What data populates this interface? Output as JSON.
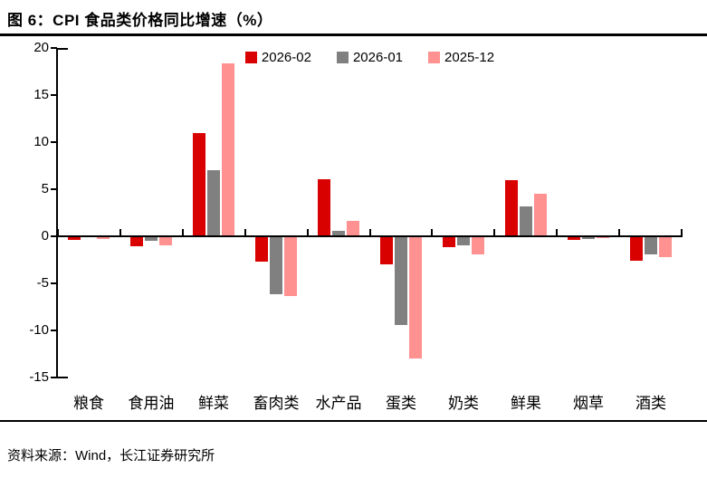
{
  "title": "图 6：CPI 食品类价格同比增速（%）",
  "source_note": "资料来源：Wind，长江证券研究所",
  "colors": {
    "series_red": "#d90000",
    "series_gray": "#808080",
    "series_pink": "#ff9191",
    "axis": "#000000",
    "background": "#ffffff"
  },
  "legend": {
    "items": [
      {
        "label": "2026-02",
        "swatch": "legend-swatch-red"
      },
      {
        "label": "2026-01",
        "swatch": "legend-swatch-gray"
      },
      {
        "label": "2025-12",
        "swatch": "legend-swatch-pink"
      }
    ]
  },
  "chart_data": {
    "type": "bar",
    "title": "图 6：CPI 食品类价格同比增速（%）",
    "categories": [
      "粮食",
      "食用油",
      "鲜菜",
      "畜肉类",
      "水产品",
      "蛋类",
      "奶类",
      "鲜果",
      "烟草",
      "酒类"
    ],
    "series": [
      {
        "name": "2026-02",
        "color": "#d90000",
        "values": [
          -0.4,
          -1.1,
          11.0,
          -2.7,
          6.1,
          -3.0,
          -1.2,
          6.0,
          -0.4,
          -2.6
        ]
      },
      {
        "name": "2026-01",
        "color": "#808080",
        "values": [
          -0.1,
          -0.5,
          7.0,
          -6.2,
          0.6,
          -9.4,
          -1.0,
          3.2,
          -0.3,
          -1.9
        ]
      },
      {
        "name": "2025-12",
        "color": "#ff9191",
        "values": [
          -0.3,
          -1.0,
          18.4,
          -6.3,
          1.6,
          -13.0,
          -1.9,
          4.5,
          -0.2,
          -2.2
        ]
      }
    ],
    "xlabel": "",
    "ylabel": "",
    "ylim": [
      -15,
      20
    ],
    "yticks": [
      20,
      15,
      10,
      5,
      0,
      -5,
      -10,
      -15
    ],
    "grid": false,
    "legend_position": "top-center"
  }
}
